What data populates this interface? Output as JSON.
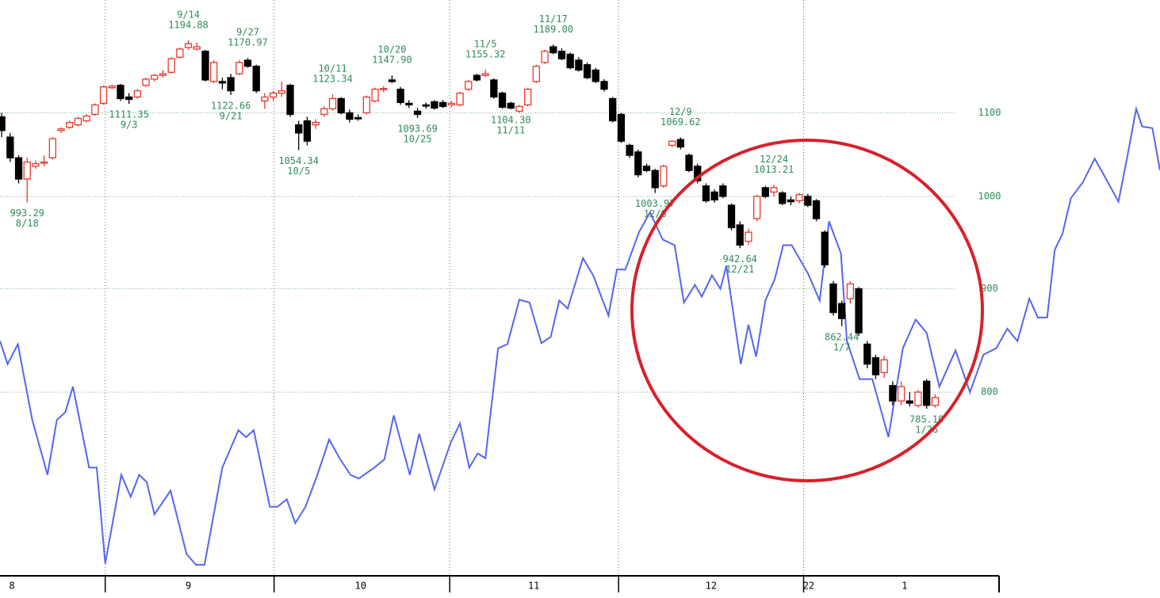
{
  "chart_data": {
    "type": "candlestick",
    "log_scale": true,
    "grid": true,
    "ylim": [
      650,
      1251
    ],
    "yticks": [
      800,
      900,
      1000,
      1100
    ],
    "xlim": [
      -0.2,
      136.5
    ],
    "month_lines": [
      12.2,
      32.1,
      52.8,
      72.7,
      94.5
    ],
    "xticks": [
      {
        "value": 1.2,
        "label": "8"
      },
      {
        "value": 22.0,
        "label": "9"
      },
      {
        "value": 42.3,
        "label": "10"
      },
      {
        "value": 62.7,
        "label": "11"
      },
      {
        "value": 83.6,
        "label": "12"
      },
      {
        "value": 95.1,
        "label": "22"
      },
      {
        "value": 106.4,
        "label": "1"
      }
    ],
    "up_color": "#e8382c",
    "down_color": "#000000",
    "label_color": "#2e8b57",
    "candles": [
      [
        1095,
        1100,
        1070,
        1078
      ],
      [
        1070,
        1075,
        1040,
        1045
      ],
      [
        1045,
        1048,
        1015,
        1020
      ],
      [
        1020,
        1045,
        993.29,
        1040
      ],
      [
        1035,
        1042,
        1032,
        1038
      ],
      [
        1040,
        1048,
        1035,
        1040
      ],
      [
        1045,
        1070,
        1043,
        1068
      ],
      [
        1078,
        1082,
        1075,
        1080
      ],
      [
        1082,
        1090,
        1080,
        1088
      ],
      [
        1085,
        1095,
        1083,
        1093
      ],
      [
        1090,
        1098,
        1088,
        1096
      ],
      [
        1098,
        1112,
        1096,
        1110
      ],
      [
        1112,
        1135,
        1110,
        1133
      ],
      [
        1132,
        1136,
        1130,
        1134
      ],
      [
        1135,
        1137,
        1115,
        1118
      ],
      [
        1120,
        1125,
        1111.35,
        1117
      ],
      [
        1120,
        1130,
        1118,
        1128
      ],
      [
        1135,
        1145,
        1133,
        1143
      ],
      [
        1143,
        1150,
        1140,
        1148
      ],
      [
        1148,
        1155,
        1145,
        1150
      ],
      [
        1152,
        1172,
        1150,
        1170
      ],
      [
        1172,
        1185,
        1170,
        1183
      ],
      [
        1185,
        1194.88,
        1182,
        1190
      ],
      [
        1183,
        1192,
        1181,
        1186
      ],
      [
        1180,
        1182,
        1140,
        1142
      ],
      [
        1140,
        1168,
        1138,
        1165
      ],
      [
        1140,
        1145,
        1130,
        1138
      ],
      [
        1145,
        1150,
        1122.66,
        1128
      ],
      [
        1150,
        1168,
        1148,
        1165
      ],
      [
        1168,
        1170.97,
        1158,
        1160
      ],
      [
        1160,
        1162,
        1125,
        1128
      ],
      [
        1115,
        1125,
        1105,
        1120
      ],
      [
        1120,
        1128,
        1115,
        1125
      ],
      [
        1125,
        1140,
        1120,
        1128
      ],
      [
        1135,
        1137,
        1095,
        1098
      ],
      [
        1085,
        1090,
        1054.34,
        1075
      ],
      [
        1090,
        1095,
        1060,
        1065
      ],
      [
        1085,
        1092,
        1080,
        1088
      ],
      [
        1098,
        1108,
        1095,
        1105
      ],
      [
        1105,
        1123.34,
        1103,
        1118
      ],
      [
        1118,
        1120,
        1098,
        1100
      ],
      [
        1100,
        1104,
        1088,
        1092
      ],
      [
        1094,
        1098,
        1090,
        1093
      ],
      [
        1100,
        1122,
        1098,
        1120
      ],
      [
        1115,
        1132,
        1113,
        1130
      ],
      [
        1130,
        1134,
        1126,
        1131
      ],
      [
        1142,
        1147.9,
        1138,
        1140
      ],
      [
        1130,
        1133,
        1110,
        1113
      ],
      [
        1112,
        1116,
        1106,
        1110
      ],
      [
        1102,
        1106,
        1093.69,
        1098
      ],
      [
        1110,
        1113,
        1105,
        1109
      ],
      [
        1114,
        1116,
        1104,
        1106
      ],
      [
        1113,
        1116,
        1106,
        1108
      ],
      [
        1110,
        1115,
        1107,
        1112
      ],
      [
        1110,
        1127,
        1108,
        1125
      ],
      [
        1130,
        1142,
        1128,
        1140
      ],
      [
        1148,
        1150,
        1140,
        1142
      ],
      [
        1148,
        1155.32,
        1146,
        1150
      ],
      [
        1142,
        1144,
        1118,
        1120
      ],
      [
        1125,
        1127,
        1105,
        1107
      ],
      [
        1112,
        1114,
        1104.3,
        1106
      ],
      [
        1102,
        1110,
        1100,
        1108
      ],
      [
        1110,
        1132,
        1108,
        1130
      ],
      [
        1140,
        1162,
        1138,
        1160
      ],
      [
        1165,
        1182,
        1163,
        1180
      ],
      [
        1186,
        1189,
        1176,
        1178
      ],
      [
        1180,
        1184,
        1168,
        1170
      ],
      [
        1176,
        1178,
        1156,
        1158
      ],
      [
        1168,
        1172,
        1153,
        1155
      ],
      [
        1162,
        1165,
        1143,
        1145
      ],
      [
        1155,
        1158,
        1138,
        1140
      ],
      [
        1140,
        1143,
        1127,
        1130
      ],
      [
        1118,
        1120,
        1088,
        1090
      ],
      [
        1098,
        1100,
        1063,
        1065
      ],
      [
        1060,
        1062,
        1045,
        1048
      ],
      [
        1052,
        1055,
        1022,
        1025
      ],
      [
        1035,
        1038,
        1028,
        1030
      ],
      [
        1030,
        1032,
        1003.97,
        1010
      ],
      [
        1012,
        1037,
        1010,
        1035
      ],
      [
        1060,
        1066,
        1058,
        1065
      ],
      [
        1067,
        1069.62,
        1055,
        1058
      ],
      [
        1048,
        1050,
        1028,
        1030
      ],
      [
        1035,
        1038,
        1015,
        1018
      ],
      [
        1012,
        1015,
        993,
        995
      ],
      [
        1005,
        1008,
        993,
        996
      ],
      [
        1012,
        1015,
        998,
        1000
      ],
      [
        990,
        992,
        962,
        965
      ],
      [
        968,
        972,
        942.64,
        946
      ],
      [
        950,
        964,
        946,
        960
      ],
      [
        975,
        1002,
        972,
        1000
      ],
      [
        1010,
        1012,
        998,
        1000
      ],
      [
        1005,
        1013.21,
        1000,
        1010
      ],
      [
        1004,
        1006,
        990,
        992
      ],
      [
        996,
        1000,
        990,
        994
      ],
      [
        995,
        1004,
        992,
        1002
      ],
      [
        1000,
        1003,
        988,
        990
      ],
      [
        995,
        997,
        972,
        975
      ],
      [
        960,
        962,
        922,
        925
      ],
      [
        905,
        908,
        873,
        876
      ],
      [
        885,
        888,
        862.44,
        870
      ],
      [
        890,
        908,
        885,
        905
      ],
      [
        900,
        902,
        853,
        856
      ],
      [
        845,
        848,
        822,
        826
      ],
      [
        832,
        835,
        812,
        816
      ],
      [
        818,
        834,
        813,
        830
      ],
      [
        806,
        810,
        788,
        792
      ],
      [
        792,
        810,
        788,
        805
      ],
      [
        792,
        800,
        787,
        790
      ],
      [
        788,
        802,
        786,
        800
      ],
      [
        810,
        812,
        785.1,
        788
      ],
      [
        788,
        798,
        786,
        795
      ]
    ],
    "annotations": [
      {
        "index": 3,
        "date": "8/18",
        "price": 993.29,
        "position": "below"
      },
      {
        "index": 15,
        "date": "9/3",
        "price": 1111.35,
        "position": "below"
      },
      {
        "index": 22,
        "date": "9/14",
        "price": 1194.88,
        "position": "above"
      },
      {
        "index": 27,
        "date": "9/21",
        "price": 1122.66,
        "position": "below"
      },
      {
        "index": 29,
        "date": "9/27",
        "price": 1170.97,
        "position": "above"
      },
      {
        "index": 35,
        "date": "10/5",
        "price": 1054.34,
        "position": "below"
      },
      {
        "index": 39,
        "date": "10/11",
        "price": 1123.34,
        "position": "above"
      },
      {
        "index": 46,
        "date": "10/20",
        "price": {
          "value": 1147.9,
          "label": "1147.90"
        },
        "position": "above"
      },
      {
        "index": 49,
        "date": "10/25",
        "price": 1093.69,
        "position": "below"
      },
      {
        "index": 57,
        "date": "11/5",
        "price": 1155.32,
        "position": "above"
      },
      {
        "index": 60,
        "date": "11/11",
        "price": {
          "value": 1104.3,
          "label": "1104.30"
        },
        "position": "below"
      },
      {
        "index": 65,
        "date": "11/17",
        "price": {
          "value": 1189,
          "label": "1189.00"
        },
        "position": "above"
      },
      {
        "index": 77,
        "date": "12/6",
        "price": 1003.97,
        "position": "below"
      },
      {
        "index": 80,
        "date": "12/9",
        "price": 1069.62,
        "position": "above"
      },
      {
        "index": 87,
        "date": "12/21",
        "price": 942.64,
        "position": "below"
      },
      {
        "index": 91,
        "date": "12/24",
        "price": 1013.21,
        "position": "above"
      },
      {
        "index": 99,
        "date": "1/7",
        "price": 862.44,
        "position": "below"
      },
      {
        "index": 109,
        "date": "1/26",
        "price": {
          "value": 785.1,
          "label": "785.10"
        },
        "position": "below"
      }
    ],
    "line": {
      "color": "#5566ee",
      "x": [
        -0.2,
        0.7,
        1.9,
        3.6,
        5.4,
        6.5,
        7.5,
        8.4,
        10.3,
        11.2,
        12.2,
        14.1,
        15.2,
        16.2,
        17.1,
        18.0,
        19.9,
        21.8,
        22.9,
        23.9,
        26.0,
        27.9,
        28.8,
        29.7,
        31.6,
        32.5,
        33.6,
        34.6,
        35.8,
        37.2,
        38.6,
        39.8,
        41.1,
        42.1,
        43.9,
        45.1,
        46.2,
        48.1,
        49.2,
        51.0,
        52.9,
        54.0,
        55.1,
        56.1,
        57.0,
        58.5,
        59.6,
        61.0,
        62.2,
        63.6,
        64.7,
        65.7,
        66.7,
        68.5,
        69.7,
        71.5,
        72.5,
        73.5,
        75.1,
        76.4,
        77.9,
        79.3,
        80.4,
        81.7,
        82.5,
        83.7,
        84.7,
        85.4,
        87.1,
        88.0,
        88.9,
        90.0,
        91.1,
        92.1,
        93.1,
        95.0,
        96.4,
        97.5,
        98.9,
        99.6,
        101.1,
        102.6,
        104.5,
        106.2,
        107.7,
        109.0,
        110.5,
        112.4,
        114.1,
        115.7,
        117.2,
        118.5,
        119.7,
        121.1,
        122.1,
        123.2,
        124.1,
        125.0,
        126.0,
        127.4,
        128.8,
        130.2,
        131.6,
        132.6,
        133.7,
        134.4,
        135.6,
        136.5
      ],
      "values": [
        848,
        826,
        845,
        775,
        728,
        775,
        782,
        805,
        734,
        734,
        658,
        728,
        710,
        728,
        722,
        696,
        715,
        665,
        657,
        657,
        734,
        766,
        760,
        766,
        702,
        702,
        708,
        689,
        702,
        728,
        758,
        742,
        728,
        725,
        734,
        741,
        779,
        728,
        763,
        716,
        755,
        772,
        734,
        746,
        742,
        841,
        845,
        889,
        886,
        846,
        852,
        888,
        880,
        932,
        914,
        873,
        920,
        920,
        960,
        982,
        952,
        946,
        886,
        904,
        892,
        914,
        900,
        924,
        826,
        864,
        833,
        888,
        910,
        946,
        946,
        916,
        888,
        972,
        937,
        848,
        812,
        812,
        760,
        841,
        869,
        856,
        805,
        839,
        800,
        835,
        841,
        860,
        848,
        890,
        871,
        871,
        941,
        958,
        998,
        1016,
        1044,
        1019,
        994,
        1044,
        1105,
        1083,
        1081,
        1030
      ]
    }
  }
}
